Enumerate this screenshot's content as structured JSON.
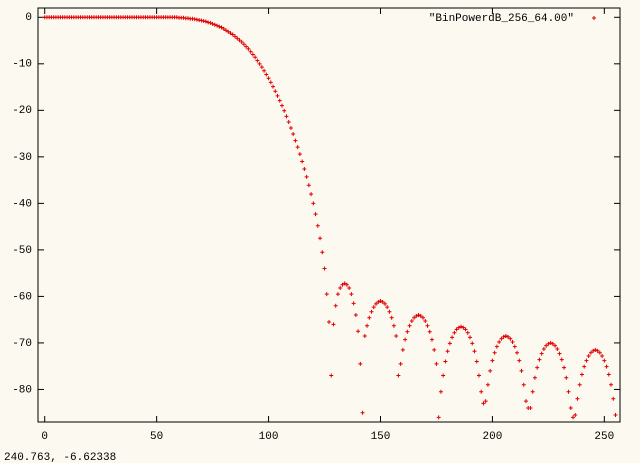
{
  "chart_data": {
    "type": "scatter",
    "series": [
      {
        "name": "\"BinPowerdB_256_64.00\"",
        "color": "#e00000",
        "x": [
          0,
          1,
          2,
          3,
          4,
          5,
          6,
          7,
          8,
          9,
          10,
          11,
          12,
          13,
          14,
          15,
          16,
          17,
          18,
          19,
          20,
          21,
          22,
          23,
          24,
          25,
          26,
          27,
          28,
          29,
          30,
          31,
          32,
          33,
          34,
          35,
          36,
          37,
          38,
          39,
          40,
          41,
          42,
          43,
          44,
          45,
          46,
          47,
          48,
          49,
          50,
          51,
          52,
          53,
          54,
          55,
          56,
          57,
          58,
          59,
          60,
          61,
          62,
          63,
          64,
          65,
          66,
          67,
          68,
          69,
          70,
          71,
          72,
          73,
          74,
          75,
          76,
          77,
          78,
          79,
          80,
          81,
          82,
          83,
          84,
          85,
          86,
          87,
          88,
          89,
          90,
          91,
          92,
          93,
          94,
          95,
          96,
          97,
          98,
          99,
          100,
          101,
          102,
          103,
          104,
          105,
          106,
          107,
          108,
          109,
          110,
          111,
          112,
          113,
          114,
          115,
          116,
          117,
          118,
          119,
          120,
          121,
          122,
          123,
          124,
          125,
          126,
          127,
          128,
          129,
          130,
          131,
          132,
          133,
          134,
          135,
          136,
          137,
          138,
          139,
          140,
          141,
          142,
          143,
          144,
          145,
          146,
          147,
          148,
          149,
          150,
          151,
          152,
          153,
          154,
          155,
          156,
          157,
          158,
          159,
          160,
          161,
          162,
          163,
          164,
          165,
          166,
          167,
          168,
          169,
          170,
          171,
          172,
          173,
          174,
          175,
          176,
          177,
          178,
          179,
          180,
          181,
          182,
          183,
          184,
          185,
          186,
          187,
          188,
          189,
          190,
          191,
          192,
          193,
          194,
          195,
          196,
          197,
          198,
          199,
          200,
          201,
          202,
          203,
          204,
          205,
          206,
          207,
          208,
          209,
          210,
          211,
          212,
          213,
          214,
          215,
          216,
          217,
          218,
          219,
          220,
          221,
          222,
          223,
          224,
          225,
          226,
          227,
          228,
          229,
          230,
          231,
          232,
          233,
          234,
          235,
          236,
          237,
          238,
          239,
          240,
          241,
          242,
          243,
          244,
          245,
          246,
          247,
          248,
          249,
          250,
          251,
          252,
          253,
          254,
          255
        ],
        "values": [
          0,
          0,
          0,
          0,
          0,
          0,
          0,
          0,
          0,
          0,
          0,
          0,
          0,
          0,
          0,
          0,
          0,
          0,
          0,
          0,
          0,
          0,
          0,
          0,
          0,
          0,
          0,
          0,
          0,
          0,
          0,
          0,
          0,
          0,
          0,
          0,
          0,
          0,
          0,
          0,
          0,
          0,
          0,
          0,
          0,
          0,
          0,
          0,
          0,
          0,
          0,
          0,
          0,
          0,
          0,
          0,
          0,
          0,
          0,
          0,
          -0.1,
          -0.1,
          -0.1,
          -0.2,
          -0.2,
          -0.3,
          -0.3,
          -0.4,
          -0.5,
          -0.6,
          -0.7,
          -0.8,
          -0.9,
          -1.1,
          -1.2,
          -1.4,
          -1.6,
          -1.8,
          -2.0,
          -2.2,
          -2.5,
          -2.8,
          -3.1,
          -3.4,
          -3.7,
          -4.1,
          -4.5,
          -4.9,
          -5.3,
          -5.8,
          -6.3,
          -6.8,
          -7.4,
          -8.0,
          -8.6,
          -9.3,
          -10.0,
          -10.7,
          -11.5,
          -12.3,
          -13.1,
          -14.0,
          -14.9,
          -15.9,
          -16.9,
          -17.9,
          -19.0,
          -20.1,
          -21.3,
          -22.5,
          -23.8,
          -25.1,
          -26.5,
          -27.9,
          -29.4,
          -31.0,
          -32.6,
          -34.3,
          -36.1,
          -38.0,
          -40.0,
          -42.3,
          -44.8,
          -47.5,
          -50.5,
          -54.0,
          -59.5,
          -65.5,
          -77,
          -66,
          -62,
          -59.5,
          -58.2,
          -57.5,
          -57.2,
          -57.5,
          -58.2,
          -59.5,
          -61.5,
          -64,
          -67.5,
          -74.5,
          -85,
          -68.5,
          -66.3,
          -64.6,
          -63.3,
          -62.3,
          -61.6,
          -61.2,
          -61,
          -61.2,
          -61.6,
          -62.3,
          -63.3,
          -64.6,
          -66.3,
          -68.5,
          -77,
          -74.5,
          -71.5,
          -69.3,
          -67.6,
          -66.3,
          -65.3,
          -64.6,
          -64.2,
          -64,
          -64.2,
          -64.6,
          -65.3,
          -66.3,
          -67.6,
          -69.3,
          -71.5,
          -74.5,
          -86,
          -80.5,
          -77,
          -74,
          -71.8,
          -70.1,
          -68.8,
          -67.8,
          -67.1,
          -66.7,
          -66.5,
          -66.7,
          -67.1,
          -67.8,
          -68.8,
          -70.1,
          -71.8,
          -74,
          -77,
          -80.5,
          -83,
          -82.5,
          -79,
          -76,
          -73.8,
          -72.1,
          -70.8,
          -69.8,
          -69.1,
          -68.7,
          -68.5,
          -68.7,
          -69.1,
          -69.8,
          -70.8,
          -72.1,
          -73.8,
          -76,
          -79,
          -82.5,
          -84,
          -84,
          -80.5,
          -77.5,
          -75.3,
          -73.6,
          -72.3,
          -71.3,
          -70.6,
          -70.2,
          -70,
          -70.2,
          -70.6,
          -71.3,
          -72.3,
          -73.6,
          -75.3,
          -77.5,
          -80.5,
          -84,
          -86,
          -85.5,
          -82,
          -79,
          -76.8,
          -75.1,
          -73.8,
          -72.8,
          -72.1,
          -71.7,
          -71.5,
          -71.7,
          -72.1,
          -72.8,
          -73.8,
          -75.1,
          -76.8,
          -79,
          -82,
          -85.5
        ]
      }
    ],
    "xlim": [
      -3,
      257
    ],
    "ylim": [
      -87,
      2
    ],
    "xticks": [
      0,
      50,
      100,
      150,
      200,
      250
    ],
    "yticks": [
      0,
      -10,
      -20,
      -30,
      -40,
      -50,
      -60,
      -70,
      -80
    ],
    "legend": "top-right",
    "status_text": "240.763, -6.62338"
  }
}
